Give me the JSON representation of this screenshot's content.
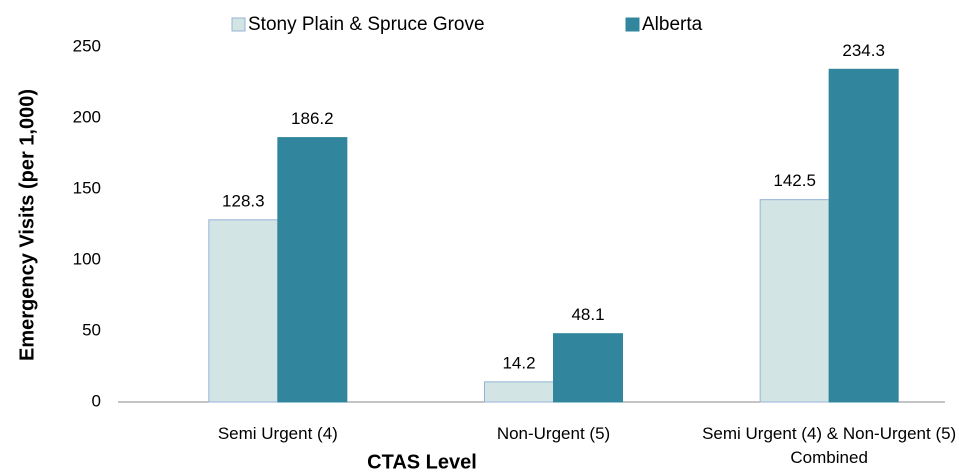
{
  "chart_data": {
    "type": "bar",
    "categories": [
      "Semi Urgent (4)",
      "Non-Urgent (5)",
      "Semi Urgent (4) & Non-Urgent (5) Combined"
    ],
    "series": [
      {
        "name": "Stony Plain & Spruce Grove",
        "color": "#d3e4e4",
        "values": [
          128.3,
          14.2,
          142.5
        ]
      },
      {
        "name": "Alberta",
        "color": "#31859c",
        "values": [
          186.2,
          48.1,
          234.3
        ]
      }
    ],
    "xlabel": "CTAS Level",
    "ylabel": "Emergency Visits (per 1,000)",
    "ylim": [
      0,
      250
    ],
    "yticks": [
      0,
      50,
      100,
      150,
      200,
      250
    ],
    "grid": false,
    "legend": "top"
  }
}
